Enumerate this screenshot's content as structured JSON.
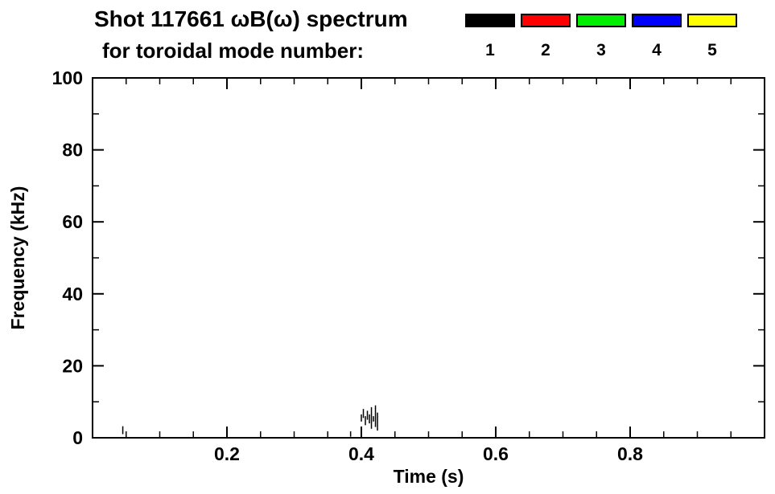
{
  "header": {
    "title_line1": "Shot 117661 ωB(ω) spectrum",
    "title_line2": "for toroidal mode number:"
  },
  "chart_data": {
    "type": "scatter",
    "title": "Shot 117661 ωB(ω) spectrum for toroidal mode number:",
    "xlabel": "Time (s)",
    "ylabel": "Frequency (kHz)",
    "xlim": [
      0.0,
      1.0
    ],
    "ylim": [
      0,
      100
    ],
    "grid": false,
    "legend_position": "top-right",
    "x_major_ticks": [
      0.2,
      0.4,
      0.6,
      0.8
    ],
    "x_tick_labels": [
      "0.2",
      "0.4",
      "0.6",
      "0.8"
    ],
    "x_minor_step": 0.05,
    "y_major_ticks": [
      0,
      20,
      40,
      60,
      80,
      100
    ],
    "y_tick_labels": [
      "0",
      "20",
      "40",
      "60",
      "80",
      "100"
    ],
    "y_minor_step": 10,
    "legend": {
      "title": "toroidal mode number",
      "entries": [
        {
          "label": "1",
          "color": "#000000"
        },
        {
          "label": "2",
          "color": "#ff0000"
        },
        {
          "label": "3",
          "color": "#00ee00"
        },
        {
          "label": "4",
          "color": "#0000ff"
        },
        {
          "label": "5",
          "color": "#ffff00"
        }
      ]
    },
    "series": [
      {
        "name": "1",
        "color": "#000000",
        "marks": [
          {
            "x": 0.045,
            "y0": 1.0,
            "y1": 3.2
          },
          {
            "x": 0.384,
            "y0": 0.3,
            "y1": 1.8
          },
          {
            "x": 0.4,
            "y0": 4.5,
            "y1": 6.5
          },
          {
            "x": 0.403,
            "y0": 5.5,
            "y1": 8.0
          },
          {
            "x": 0.406,
            "y0": 3.5,
            "y1": 6.0
          },
          {
            "x": 0.409,
            "y0": 5.0,
            "y1": 7.5
          },
          {
            "x": 0.412,
            "y0": 4.0,
            "y1": 6.5
          },
          {
            "x": 0.415,
            "y0": 2.5,
            "y1": 8.5
          },
          {
            "x": 0.418,
            "y0": 4.5,
            "y1": 6.0
          },
          {
            "x": 0.421,
            "y0": 3.0,
            "y1": 9.0
          },
          {
            "x": 0.424,
            "y0": 2.0,
            "y1": 7.0
          }
        ]
      }
    ]
  }
}
